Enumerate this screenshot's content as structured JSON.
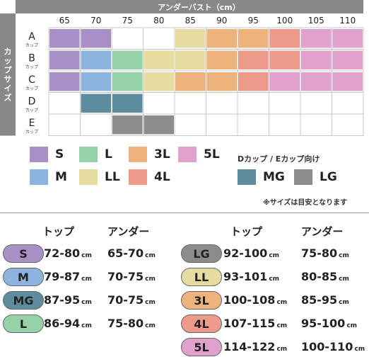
{
  "chart_data": {
    "type": "table",
    "title": "アンダーバスト（cm）",
    "y_title": "カップサイズ",
    "under_bust": [
      "65",
      "70",
      "75",
      "80",
      "85",
      "90",
      "95",
      "100",
      "105",
      "110"
    ],
    "cups": [
      {
        "letter": "A",
        "sub": "カップ"
      },
      {
        "letter": "B",
        "sub": "カップ"
      },
      {
        "letter": "C",
        "sub": "カップ"
      },
      {
        "letter": "D",
        "sub": "カップ"
      },
      {
        "letter": "E",
        "sub": "カップ"
      }
    ],
    "size_map": [
      {
        "size": "S",
        "cells": [
          [
            0,
            0
          ],
          [
            0,
            1
          ],
          [
            1,
            0
          ],
          [
            2,
            0
          ]
        ]
      },
      {
        "size": "M",
        "cells": [
          [
            1,
            1
          ],
          [
            2,
            1
          ]
        ]
      },
      {
        "size": "L",
        "cells": [
          [
            1,
            2
          ],
          [
            2,
            2
          ]
        ]
      },
      {
        "size": "LL",
        "cells": [
          [
            0,
            4
          ],
          [
            1,
            3
          ],
          [
            1,
            4
          ],
          [
            2,
            3
          ]
        ]
      },
      {
        "size": "3L",
        "cells": [
          [
            0,
            5
          ],
          [
            0,
            6
          ],
          [
            1,
            5
          ],
          [
            2,
            4
          ],
          [
            2,
            5
          ]
        ]
      },
      {
        "size": "4L",
        "cells": [
          [
            0,
            7
          ],
          [
            1,
            6
          ],
          [
            1,
            7
          ],
          [
            2,
            6
          ]
        ]
      },
      {
        "size": "5L",
        "cells": [
          [
            0,
            8
          ],
          [
            0,
            9
          ],
          [
            1,
            8
          ],
          [
            1,
            9
          ],
          [
            2,
            7
          ],
          [
            2,
            8
          ],
          [
            2,
            9
          ]
        ]
      },
      {
        "size": "MG",
        "cells": [
          [
            3,
            1
          ],
          [
            3,
            2
          ]
        ]
      },
      {
        "size": "LG",
        "cells": [
          [
            4,
            2
          ],
          [
            4,
            3
          ]
        ]
      }
    ]
  },
  "colors": {
    "S": "#a88fc5",
    "M": "#8db4de",
    "L": "#96d2a8",
    "LL": "#e6dba0",
    "3L": "#eeb27c",
    "4L": "#ee9a8a",
    "5L": "#e0a2cc",
    "MG": "#5d8c9e",
    "LG": "#8c8c8c",
    "header": "#888888"
  },
  "legend": {
    "items": [
      "S",
      "M",
      "L",
      "LL",
      "3L",
      "4L",
      "5L"
    ],
    "de_note": "Dカップ / Eカップ向け",
    "de_items": [
      "MG",
      "LG"
    ],
    "estimate_note": "※サイズは目安となります"
  },
  "size_table": {
    "headers": {
      "top": "トップ",
      "under": "アンダー"
    },
    "unit": "cm",
    "left": [
      {
        "size": "S",
        "top": "72-80",
        "under": "65-70"
      },
      {
        "size": "M",
        "top": "79-87",
        "under": "70-75"
      },
      {
        "size": "MG",
        "top": "87-95",
        "under": "70-75"
      },
      {
        "size": "L",
        "top": "86-94",
        "under": "75-80"
      }
    ],
    "right": [
      {
        "size": "LG",
        "top": "92-100",
        "under": "75-80"
      },
      {
        "size": "LL",
        "top": "93-101",
        "under": "80-85"
      },
      {
        "size": "3L",
        "top": "100-108",
        "under": "85-95"
      },
      {
        "size": "4L",
        "top": "107-115",
        "under": "95-100"
      },
      {
        "size": "5L",
        "top": "114-122",
        "under": "100-110"
      }
    ]
  }
}
